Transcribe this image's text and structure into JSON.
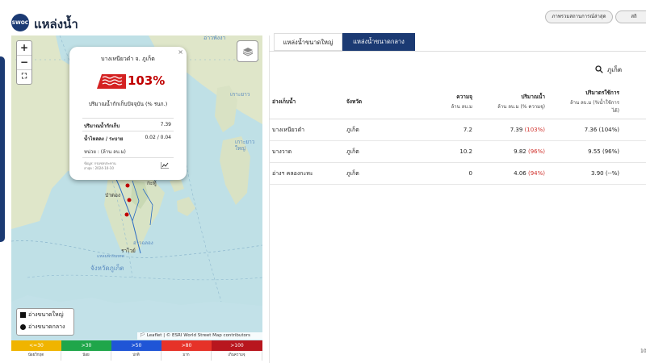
{
  "header": {
    "logo_text": "SWOC",
    "title": "แหล่งน้ำ",
    "buttons": [
      "ภาพรวมสถานการณ์ล่าสุด",
      "สถิ"
    ]
  },
  "map": {
    "zoom_in": "+",
    "zoom_out": "−",
    "fullscreen": "⛶",
    "place_labels": {
      "phangnga": "อ่าวพังงา",
      "kho_yao_noi": "เกาะยาว",
      "kho_yao_yai": "เกาะยาวใหญ่",
      "kathu": "กะทู้",
      "patong": "ป่าตอง",
      "rawai": "ราไวย์",
      "cape": "แหลมพรหมเทพ",
      "phuket": "จังหวัดภูเก็ต",
      "chalong": "อ่าวฉลอง"
    },
    "popup": {
      "close": "×",
      "title": "บางเหนียวดำ จ. ภูเก็ต",
      "percent": "103%",
      "subtitle": "ปริมาณน้ำกักเก็บปัจจุบัน (% รนก.)",
      "rows": [
        {
          "label": "ปริมาณน้ำกักเก็บ",
          "value": "7.39"
        },
        {
          "label": "น้ำไหลลง / ระบาย",
          "value": "0.02 / 0.04"
        }
      ],
      "unit": "หน่วย : (ล้าน ลบ.ม)",
      "source_1": "ข้อมูล: กรมชลประทาน",
      "source_2": "ล่าสุด : 2024-10-10"
    },
    "legend": {
      "large": "อ่างขนาดใหญ่",
      "medium": "อ่างขนาดกลาง"
    },
    "attribution": "🏳 Leaflet | © ESRI World Street Map contributors",
    "scale": [
      {
        "label": "<=30",
        "desc": "น้อยวิกฤต",
        "color": "#f0b400"
      },
      {
        "label": ">30",
        "desc": "น้อย",
        "color": "#1fa64a"
      },
      {
        "label": ">50",
        "desc": "ปกติ",
        "color": "#1f55d6"
      },
      {
        "label": ">80",
        "desc": "มาก",
        "color": "#e63228"
      },
      {
        "label": ">100",
        "desc": "เกินความจุ",
        "color": "#b8161e"
      }
    ]
  },
  "panel": {
    "tabs": [
      "แหล่งน้ำขนาดใหญ่",
      "แหล่งน้ำขนาดกลาง"
    ],
    "search_value": "ภูเก็ต",
    "columns": {
      "reservoir": "อ่างเก็บน้ำ",
      "province": "จังหวัด",
      "capacity": "ความจุ",
      "capacity_unit": "ล้าน ลบ.ม",
      "volume": "ปริมาณน้ำ",
      "volume_unit": "ล้าน ลบ.ม (% ความจุ)",
      "usable": "ปริมาตรใช้การ",
      "usable_unit": "ล้าน ลบ.ม (%น้ำใช้การ",
      "usable_unit_2": "ได้)"
    },
    "rows": [
      {
        "name": "บางเหนียวดำ",
        "province": "ภูเก็ต",
        "capacity": "7.2",
        "volume": "7.39",
        "volume_pct": "(103%)",
        "usable": "7.36 (104%)"
      },
      {
        "name": "บางวาด",
        "province": "ภูเก็ต",
        "capacity": "10.2",
        "volume": "9.82",
        "volume_pct": "(96%)",
        "usable": "9.55 (96%)"
      },
      {
        "name": "อ่างฯ คลองกะทะ",
        "province": "ภูเก็ต",
        "capacity": "0",
        "volume": "4.06",
        "volume_pct": "(94%)",
        "usable": "3.90 (--%)"
      }
    ],
    "page_number": "10"
  }
}
